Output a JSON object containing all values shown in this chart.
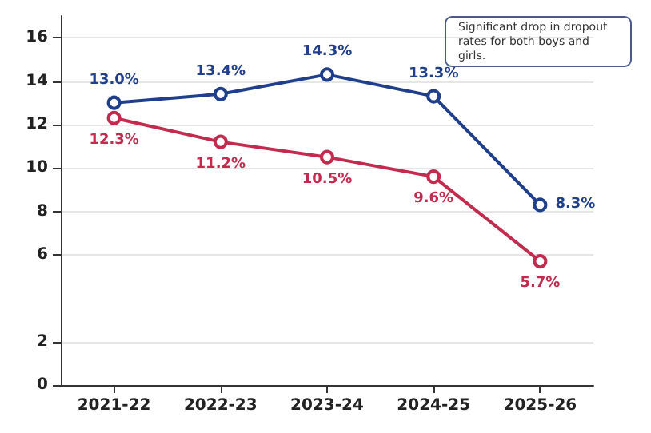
{
  "chart_data": {
    "type": "line",
    "categories": [
      "2021-22",
      "2022-23",
      "2023-24",
      "2024-25",
      "2025-26"
    ],
    "series": [
      {
        "color": "#1f3f8c",
        "values": [
          13.0,
          13.4,
          14.3,
          13.3,
          8.3
        ],
        "value_labels": [
          "13.0%",
          "13.4%",
          "14.3%",
          "13.3%",
          "8.3%"
        ]
      },
      {
        "color": "#c42a4e",
        "values": [
          12.3,
          11.2,
          10.5,
          9.6,
          5.7
        ],
        "value_labels": [
          "12.3%",
          "11.2%",
          "10.5%",
          "9.6%",
          "5.7%"
        ]
      }
    ],
    "ylim": [
      0,
      17
    ],
    "yticks": [
      0,
      2,
      6,
      8,
      10,
      12,
      14,
      16
    ],
    "grid": "y",
    "marker": "circle",
    "line_style": "solid",
    "annotations": [
      "Significant drop in dropout rates for both boys and girls."
    ]
  }
}
